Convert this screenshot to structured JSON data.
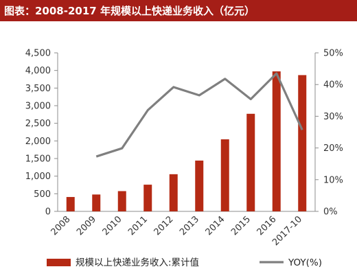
{
  "header": {
    "title": "图表：2008-2017 年规模以上快递业务收入（亿元）"
  },
  "colors": {
    "title_bg": "#a51e17",
    "bar": "#b52a14",
    "line": "#7f7f7f"
  },
  "chart_data": {
    "type": "bar",
    "categories": [
      "2008",
      "2009",
      "2010",
      "2011",
      "2012",
      "2013",
      "2014",
      "2015",
      "2016",
      "2017-10"
    ],
    "series": [
      {
        "name": "规模以上快递业务收入:累计值",
        "type": "bar",
        "axis": "left",
        "values": [
          408,
          479,
          575,
          758,
          1055,
          1442,
          2045,
          2770,
          3974,
          3868
        ]
      },
      {
        "name": "YOY(%)",
        "type": "line",
        "axis": "right",
        "values": [
          null,
          17.3,
          19.9,
          31.9,
          39.2,
          36.6,
          41.8,
          35.4,
          43.5,
          25.7
        ]
      }
    ],
    "y_left": {
      "min": 0,
      "max": 4500,
      "step": 500,
      "tick_labels": [
        "0",
        "500",
        "1,000",
        "1,500",
        "2,000",
        "2,500",
        "3,000",
        "3,500",
        "4,000",
        "4,500"
      ]
    },
    "y_right": {
      "min": 0,
      "max": 50,
      "step": 10,
      "tick_labels": [
        "0%",
        "10%",
        "20%",
        "30%",
        "40%",
        "50%"
      ]
    },
    "grid": false,
    "legend": {
      "position": "bottom"
    }
  }
}
